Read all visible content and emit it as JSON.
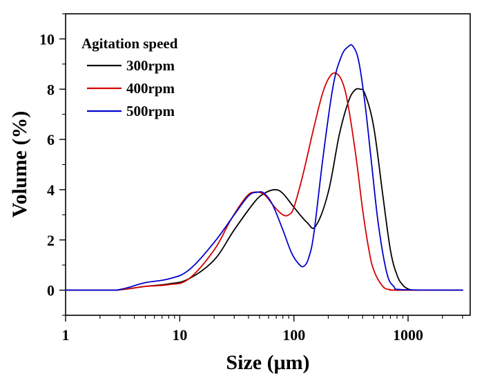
{
  "chart_data": {
    "type": "line",
    "xlabel": "Size (μm)",
    "ylabel": "Volume (%)",
    "xscale": "log",
    "xlim": [
      1,
      3500
    ],
    "ylim": [
      -1,
      11
    ],
    "x_tick_labels": [
      "1",
      "10",
      "100",
      "1000"
    ],
    "x_ticks": [
      1,
      10,
      100,
      1000
    ],
    "y_tick_labels": [
      "0",
      "2",
      "4",
      "6",
      "8",
      "10"
    ],
    "y_ticks": [
      0,
      2,
      4,
      6,
      8,
      10
    ],
    "grid": false,
    "legend": {
      "title": "Agitation speed",
      "placement": "top-left"
    },
    "series": [
      {
        "name": "300rpm",
        "color": "#000000",
        "x": [
          2.8,
          3.5,
          5,
          8,
          12,
          20,
          30,
          45,
          55,
          68,
          80,
          100,
          130,
          155,
          200,
          250,
          300,
          340,
          380,
          420,
          500,
          600,
          700,
          800,
          900,
          1000,
          1100,
          1200,
          3000
        ],
        "y": [
          0,
          0.05,
          0.15,
          0.25,
          0.45,
          1.2,
          2.4,
          3.5,
          3.85,
          4.0,
          3.85,
          3.3,
          2.7,
          2.55,
          3.9,
          6.2,
          7.5,
          7.95,
          8.0,
          7.8,
          6.5,
          3.8,
          1.6,
          0.6,
          0.2,
          0.05,
          0,
          0,
          0
        ]
      },
      {
        "name": "400rpm",
        "color": "#d40000",
        "x": [
          2.8,
          3.5,
          5,
          8,
          12,
          20,
          28,
          38,
          45,
          55,
          68,
          80,
          90,
          100,
          120,
          150,
          180,
          210,
          240,
          270,
          300,
          350,
          400,
          450,
          500,
          600,
          700,
          800,
          3000
        ],
        "y": [
          0,
          0.05,
          0.15,
          0.22,
          0.45,
          1.6,
          2.8,
          3.7,
          3.9,
          3.8,
          3.3,
          3.0,
          3.0,
          3.3,
          4.6,
          6.5,
          7.9,
          8.55,
          8.6,
          8.2,
          7.3,
          5.3,
          3.2,
          1.7,
          0.8,
          0.15,
          0.02,
          0,
          0
        ]
      },
      {
        "name": "500rpm",
        "color": "#0000cc",
        "x": [
          2.8,
          3.5,
          5,
          8,
          12,
          20,
          30,
          40,
          48,
          55,
          65,
          80,
          95,
          110,
          122,
          135,
          150,
          180,
          220,
          260,
          300,
          330,
          370,
          420,
          480,
          550,
          650,
          750,
          900,
          3000
        ],
        "y": [
          0,
          0.1,
          0.3,
          0.45,
          0.8,
          1.9,
          3.0,
          3.75,
          3.9,
          3.85,
          3.4,
          2.4,
          1.5,
          1.05,
          0.95,
          1.3,
          2.3,
          5.3,
          8.1,
          9.3,
          9.7,
          9.7,
          9.1,
          7.4,
          5.0,
          2.6,
          0.7,
          0.15,
          0.02,
          0
        ]
      }
    ]
  }
}
